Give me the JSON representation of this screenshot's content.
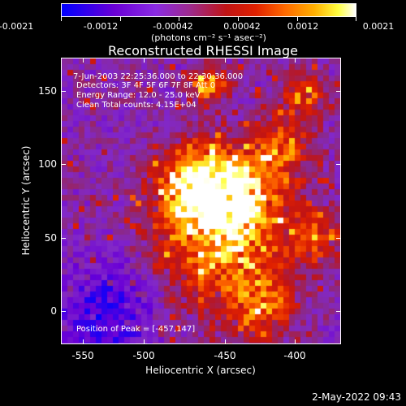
{
  "colorbar": {
    "tick_labels": [
      "-0.0021",
      "-0.0012",
      "-0.00042",
      "0.00042",
      "0.0012",
      "0.0021"
    ],
    "units": "(photons cm⁻² s⁻¹ asec⁻²)"
  },
  "title": "Reconstructed RHESSI Image",
  "info": {
    "time_range": "7-Jun-2003 22:25:36.000 to 22:30:36.000",
    "detectors": "Detectors: 3F 4F 5F 6F 7F 8F   Att 0",
    "energy_range": "Energy Range: 12.0 - 25.0 keV",
    "clean": "Clean    Total counts: 4.15E+04",
    "peak": "Position of Peak = [-457,147]"
  },
  "axes": {
    "xlabel": "Heliocentric X (arcsec)",
    "ylabel": "Heliocentric Y (arcsec)",
    "xticks": [
      "-550",
      "-500",
      "-450",
      "-400"
    ],
    "yticks": [
      "150",
      "100",
      "50",
      "0"
    ],
    "xlim": [
      -565,
      -367
    ],
    "ylim": [
      -20,
      170
    ]
  },
  "colors": {
    "low": "#0000ff",
    "mid": "#c01414",
    "high": "#ffffff"
  },
  "footer": {
    "date_stamp": "2-May-2022 09:43"
  }
}
